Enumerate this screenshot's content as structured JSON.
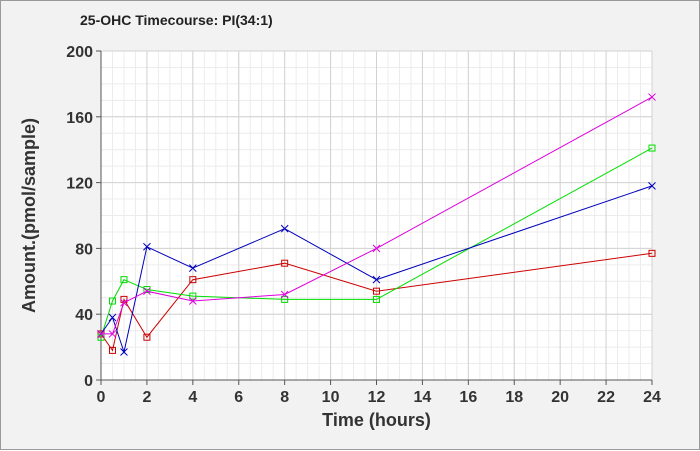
{
  "chart_data": {
    "type": "line",
    "title": "25-OHC Timecourse: PI(34:1)",
    "xlabel": "Time (hours)",
    "ylabel": "Amount.(pmol/sample)",
    "xlim": [
      0,
      24
    ],
    "ylim": [
      0,
      200
    ],
    "xticks": [
      0,
      2,
      4,
      6,
      8,
      10,
      12,
      14,
      16,
      18,
      20,
      22,
      24
    ],
    "yticks": [
      0,
      40,
      80,
      120,
      160,
      200
    ],
    "grid": true,
    "series": [
      {
        "color": "#cc0000",
        "marker": "square",
        "points": [
          [
            0,
            28
          ],
          [
            0.5,
            18
          ],
          [
            1,
            49
          ],
          [
            2,
            26
          ],
          [
            4,
            61
          ],
          [
            8,
            71
          ],
          [
            12,
            54
          ],
          [
            24,
            77
          ]
        ]
      },
      {
        "color": "#00dd00",
        "marker": "square",
        "points": [
          [
            0,
            26
          ],
          [
            0.5,
            48
          ],
          [
            1,
            61
          ],
          [
            2,
            55
          ],
          [
            4,
            51
          ],
          [
            8,
            49
          ],
          [
            12,
            49
          ],
          [
            24,
            141
          ]
        ]
      },
      {
        "color": "#0000bb",
        "marker": "x",
        "points": [
          [
            0,
            28
          ],
          [
            0.5,
            38
          ],
          [
            1,
            17
          ],
          [
            2,
            81
          ],
          [
            4,
            68
          ],
          [
            8,
            92
          ],
          [
            12,
            61
          ],
          [
            24,
            118
          ]
        ]
      },
      {
        "color": "#dd00dd",
        "marker": "x",
        "points": [
          [
            0,
            28
          ],
          [
            0.5,
            28
          ],
          [
            1,
            47
          ],
          [
            2,
            54
          ],
          [
            4,
            48
          ],
          [
            8,
            52
          ],
          [
            12,
            80
          ],
          [
            24,
            172
          ]
        ]
      }
    ]
  }
}
